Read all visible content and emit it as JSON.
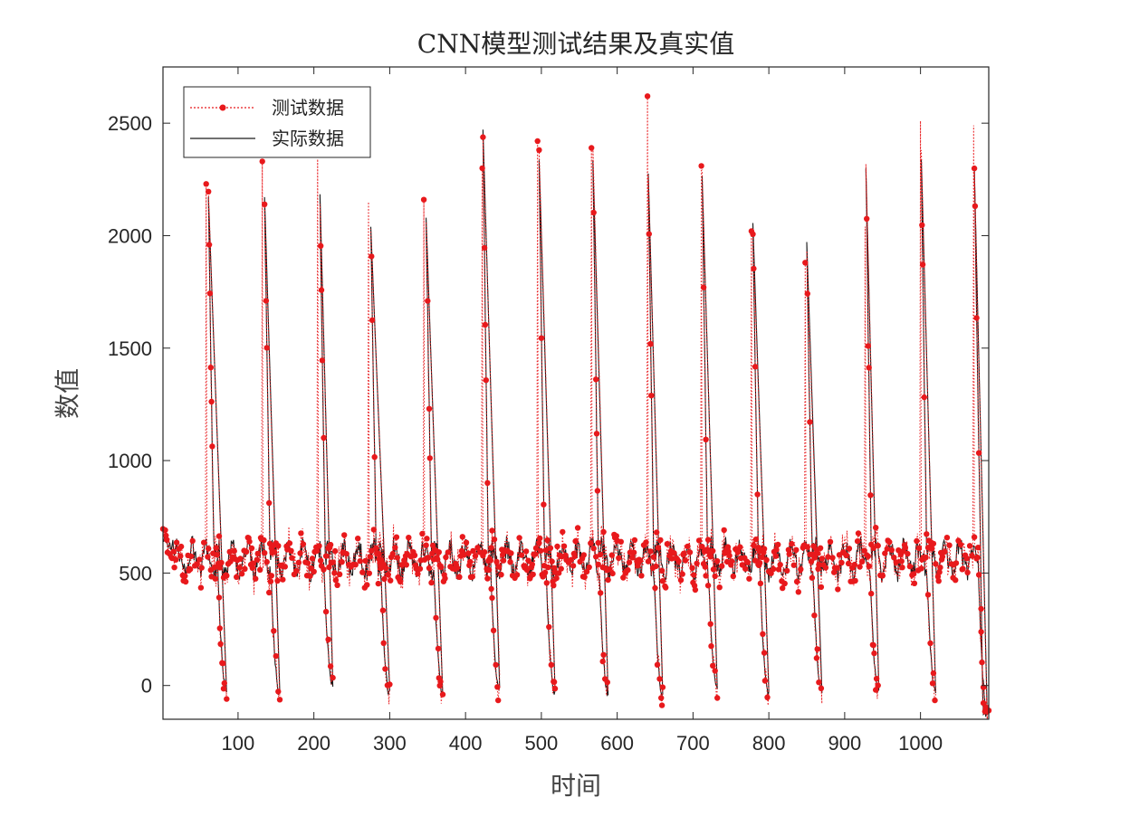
{
  "chart_data": {
    "type": "line",
    "title": "CNN模型测试结果及真实值",
    "xlabel": "时间",
    "ylabel": "数值",
    "xlim": [
      1,
      1090
    ],
    "ylim": [
      -150,
      2750
    ],
    "xticks": [
      100,
      200,
      300,
      400,
      500,
      600,
      700,
      800,
      900,
      1000
    ],
    "yticks": [
      0,
      500,
      1000,
      1500,
      2000,
      2500
    ],
    "grid": false,
    "legend_position": "top-left",
    "series": [
      {
        "name": "测试数据",
        "style": "dotted-with-markers",
        "color": "#e8191c",
        "cycle_peaks": [
          {
            "x": 58,
            "y": 2230
          },
          {
            "x": 132,
            "y": 2330
          },
          {
            "x": 205,
            "y": 2340
          },
          {
            "x": 272,
            "y": 2150
          },
          {
            "x": 345,
            "y": 2160
          },
          {
            "x": 422,
            "y": 2300
          },
          {
            "x": 495,
            "y": 2420
          },
          {
            "x": 566,
            "y": 2390
          },
          {
            "x": 640,
            "y": 2620
          },
          {
            "x": 711,
            "y": 2310
          },
          {
            "x": 777,
            "y": 2020
          },
          {
            "x": 848,
            "y": 1880
          },
          {
            "x": 927,
            "y": 2040
          },
          {
            "x": 1000,
            "y": 2510
          },
          {
            "x": 1070,
            "y": 2490
          }
        ]
      },
      {
        "name": "实际数据",
        "style": "solid",
        "color": "#1a1a1a",
        "cycle_peaks": [
          {
            "x": 60,
            "y": 2360
          },
          {
            "x": 134,
            "y": 2360
          },
          {
            "x": 207,
            "y": 2380
          },
          {
            "x": 274,
            "y": 2250
          },
          {
            "x": 347,
            "y": 2270
          },
          {
            "x": 422,
            "y": 2740
          },
          {
            "x": 496,
            "y": 2600
          },
          {
            "x": 567,
            "y": 2590
          },
          {
            "x": 640,
            "y": 2500
          },
          {
            "x": 711,
            "y": 2510
          },
          {
            "x": 778,
            "y": 2230
          },
          {
            "x": 849,
            "y": 2140
          },
          {
            "x": 927,
            "y": 2550
          },
          {
            "x": 1000,
            "y": 2570
          },
          {
            "x": 1070,
            "y": 2500
          }
        ]
      }
    ],
    "cycle_minima": [
      {
        "x": 85,
        "y": -20
      },
      {
        "x": 155,
        "y": -40
      },
      {
        "x": 225,
        "y": 0
      },
      {
        "x": 300,
        "y": -40
      },
      {
        "x": 370,
        "y": -30
      },
      {
        "x": 445,
        "y": -20
      },
      {
        "x": 518,
        "y": -40
      },
      {
        "x": 588,
        "y": -30
      },
      {
        "x": 660,
        "y": -40
      },
      {
        "x": 732,
        "y": -20
      },
      {
        "x": 800,
        "y": -40
      },
      {
        "x": 870,
        "y": -30
      },
      {
        "x": 945,
        "y": -30
      },
      {
        "x": 1020,
        "y": -30
      },
      {
        "x": 1088,
        "y": -110
      }
    ]
  }
}
